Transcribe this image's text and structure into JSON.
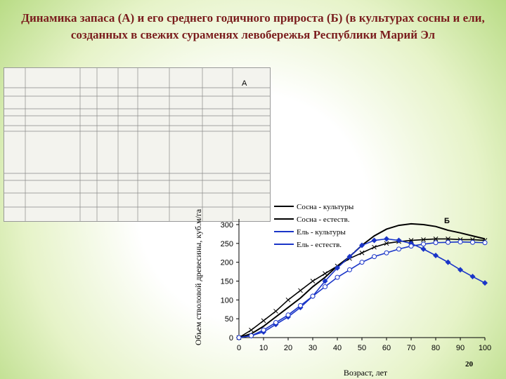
{
  "title": "Динамика запаса (А) и его среднего годичного прироста (Б) (в культурах сосны и ели, созданных в свежих сураменях левобережья Республики Марий Эл",
  "page_number": "20",
  "label_a": "А",
  "chart_data": {
    "type": "line",
    "annotation": "Б",
    "x_label": "Возраст, лет",
    "y_label": "Объем стволовой древесины, куб.м/га",
    "x": [
      0,
      5,
      10,
      15,
      20,
      25,
      30,
      35,
      40,
      45,
      50,
      55,
      60,
      65,
      70,
      75,
      80,
      85,
      90,
      95,
      100
    ],
    "xlim": [
      0,
      100
    ],
    "xticks": [
      0,
      10,
      20,
      30,
      40,
      50,
      60,
      70,
      80,
      90,
      100
    ],
    "ylim": [
      0,
      300
    ],
    "yticks": [
      0,
      50,
      100,
      150,
      200,
      250,
      300
    ],
    "series": [
      {
        "name": "Сосна - культуры",
        "color": "#000000",
        "marker": "none",
        "values": [
          0,
          10,
          30,
          55,
          80,
          105,
          135,
          160,
          190,
          215,
          245,
          270,
          288,
          298,
          302,
          300,
          295,
          285,
          278,
          270,
          262
        ]
      },
      {
        "name": "Сосна - естеств.",
        "color": "#000000",
        "marker": "x",
        "values": [
          0,
          20,
          45,
          70,
          100,
          125,
          150,
          170,
          190,
          210,
          225,
          240,
          250,
          255,
          258,
          260,
          262,
          262,
          260,
          260,
          258
        ]
      },
      {
        "name": "Ель - культуры",
        "color": "#1a35c8",
        "marker": "diamond",
        "values": [
          0,
          5,
          15,
          35,
          55,
          80,
          110,
          150,
          185,
          215,
          245,
          258,
          262,
          258,
          250,
          235,
          218,
          200,
          180,
          162,
          145
        ]
      },
      {
        "name": "Ель - естеств.",
        "color": "#1a35c8",
        "marker": "circle",
        "values": [
          0,
          5,
          20,
          40,
          60,
          85,
          110,
          135,
          160,
          180,
          200,
          215,
          225,
          235,
          243,
          248,
          252,
          253,
          254,
          253,
          252
        ]
      }
    ]
  }
}
